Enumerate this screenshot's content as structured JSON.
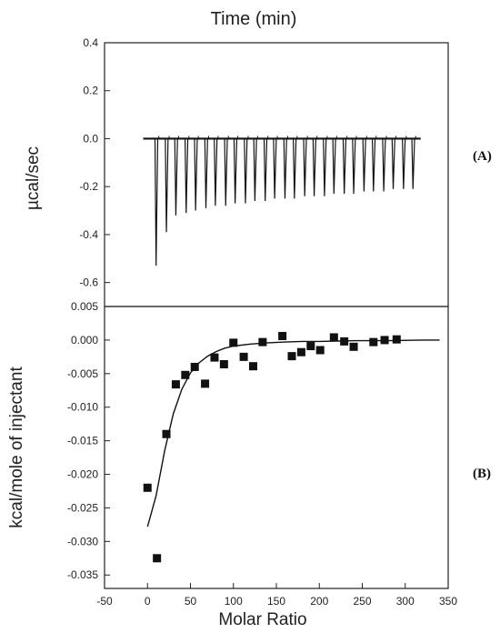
{
  "chart_data": [
    {
      "type": "line",
      "panel_label": "(A)",
      "xlabel": "Time (min)",
      "ylabel": "µcal/sec",
      "x_range_axis": [
        -50,
        350
      ],
      "ylim": [
        -0.7,
        0.4
      ],
      "yticks": [
        {
          "value": 0.4,
          "label": "0.4"
        },
        {
          "value": 0.2,
          "label": "0.2"
        },
        {
          "value": 0.0,
          "label": "0.0"
        },
        {
          "value": -0.2,
          "label": "-0.2"
        },
        {
          "value": -0.4,
          "label": "-0.4"
        },
        {
          "value": -0.6,
          "label": "-0.6"
        }
      ],
      "baseline": 0.0,
      "injection_times": [
        10,
        22,
        33,
        45,
        56,
        68,
        79,
        91,
        102,
        114,
        125,
        137,
        148,
        160,
        171,
        183,
        194,
        206,
        217,
        229,
        240,
        252,
        263,
        275,
        286,
        298,
        309
      ],
      "injection_peaks": [
        -0.53,
        -0.39,
        -0.32,
        -0.31,
        -0.3,
        -0.29,
        -0.28,
        -0.28,
        -0.27,
        -0.27,
        -0.26,
        -0.26,
        -0.25,
        -0.25,
        -0.25,
        -0.24,
        -0.24,
        -0.24,
        -0.23,
        -0.23,
        -0.23,
        -0.22,
        -0.22,
        -0.22,
        -0.21,
        -0.21,
        -0.21
      ],
      "grid": false
    },
    {
      "type": "scatter",
      "panel_label": "(B)",
      "xlabel": "Molar Ratio",
      "ylabel": "kcal/mole of injectant",
      "xlim": [
        -50,
        350
      ],
      "ylim": [
        -0.037,
        0.005
      ],
      "xticks": [
        {
          "value": -50,
          "label": "-50"
        },
        {
          "value": 0,
          "label": "0"
        },
        {
          "value": 50,
          "label": "50"
        },
        {
          "value": 100,
          "label": "100"
        },
        {
          "value": 150,
          "label": "150"
        },
        {
          "value": 200,
          "label": "200"
        },
        {
          "value": 250,
          "label": "250"
        },
        {
          "value": 300,
          "label": "300"
        },
        {
          "value": 350,
          "label": "350"
        }
      ],
      "yticks": [
        {
          "value": 0.005,
          "label": "0.005"
        },
        {
          "value": 0.0,
          "label": "0.000"
        },
        {
          "value": -0.005,
          "label": "-0.005"
        },
        {
          "value": -0.01,
          "label": "-0.010"
        },
        {
          "value": -0.015,
          "label": "-0.015"
        },
        {
          "value": -0.02,
          "label": "-0.020"
        },
        {
          "value": -0.025,
          "label": "-0.025"
        },
        {
          "value": -0.03,
          "label": "-0.030"
        },
        {
          "value": -0.035,
          "label": "-0.035"
        }
      ],
      "points": [
        {
          "x": 0,
          "y": -0.022
        },
        {
          "x": 11,
          "y": -0.0325
        },
        {
          "x": 22,
          "y": -0.014
        },
        {
          "x": 33,
          "y": -0.0066
        },
        {
          "x": 44,
          "y": -0.0052
        },
        {
          "x": 55,
          "y": -0.004
        },
        {
          "x": 67,
          "y": -0.0065
        },
        {
          "x": 78,
          "y": -0.0026
        },
        {
          "x": 89,
          "y": -0.0036
        },
        {
          "x": 100,
          "y": -0.0004
        },
        {
          "x": 112,
          "y": -0.0025
        },
        {
          "x": 123,
          "y": -0.0039
        },
        {
          "x": 134,
          "y": -0.0003
        },
        {
          "x": 157,
          "y": 0.0006
        },
        {
          "x": 168,
          "y": -0.0024
        },
        {
          "x": 179,
          "y": -0.0018
        },
        {
          "x": 190,
          "y": -0.0009
        },
        {
          "x": 201,
          "y": -0.0015
        },
        {
          "x": 217,
          "y": 0.0004
        },
        {
          "x": 229,
          "y": -0.0002
        },
        {
          "x": 240,
          "y": -0.001
        },
        {
          "x": 263,
          "y": -0.0003
        },
        {
          "x": 276,
          "y": 0.0
        },
        {
          "x": 290,
          "y": 0.0001
        }
      ],
      "fit": {
        "x": [
          0,
          10,
          20,
          30,
          40,
          50,
          60,
          70,
          80,
          90,
          100,
          120,
          140,
          160,
          180,
          200,
          240,
          280,
          320,
          340
        ],
        "y": [
          -0.0278,
          -0.0232,
          -0.0165,
          -0.011,
          -0.0073,
          -0.0049,
          -0.0034,
          -0.0024,
          -0.0017,
          -0.0012,
          -0.0009,
          -0.0006,
          -0.0004,
          -0.0003,
          -0.0002,
          -0.0002,
          -0.0001,
          -0.0001,
          0.0,
          0.0
        ]
      },
      "grid": false
    }
  ]
}
